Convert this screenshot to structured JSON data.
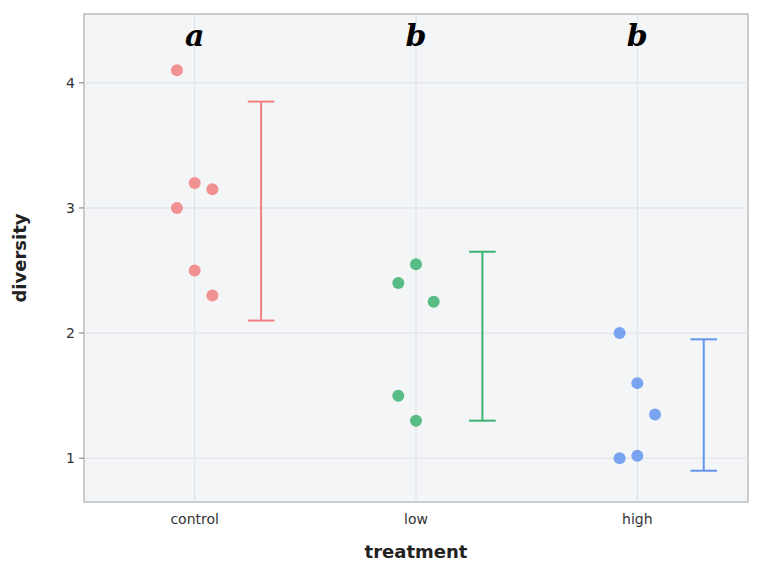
{
  "chart_data": {
    "type": "strip",
    "xlabel": "treatment",
    "ylabel": "diversity",
    "categories": [
      "control",
      "low",
      "high"
    ],
    "colors": [
      "#F08080",
      "#3CB371",
      "#6495ED"
    ],
    "values": [
      [
        4.1,
        3.2,
        3.15,
        3.0,
        2.5,
        2.3
      ],
      [
        2.4,
        2.55,
        2.25,
        1.5,
        1.3
      ],
      [
        2.0,
        1.6,
        1.35,
        1.0,
        1.02
      ]
    ],
    "error_bars": [
      {
        "upper": 3.85,
        "lower": 2.1
      },
      {
        "upper": 2.65,
        "lower": 1.3
      },
      {
        "upper": 1.95,
        "lower": 0.9
      }
    ],
    "annotations": [
      "a",
      "b",
      "b"
    ],
    "ylim": [
      0.65,
      4.55
    ],
    "yticks": [
      1,
      2,
      3,
      4
    ],
    "grid": true
  }
}
